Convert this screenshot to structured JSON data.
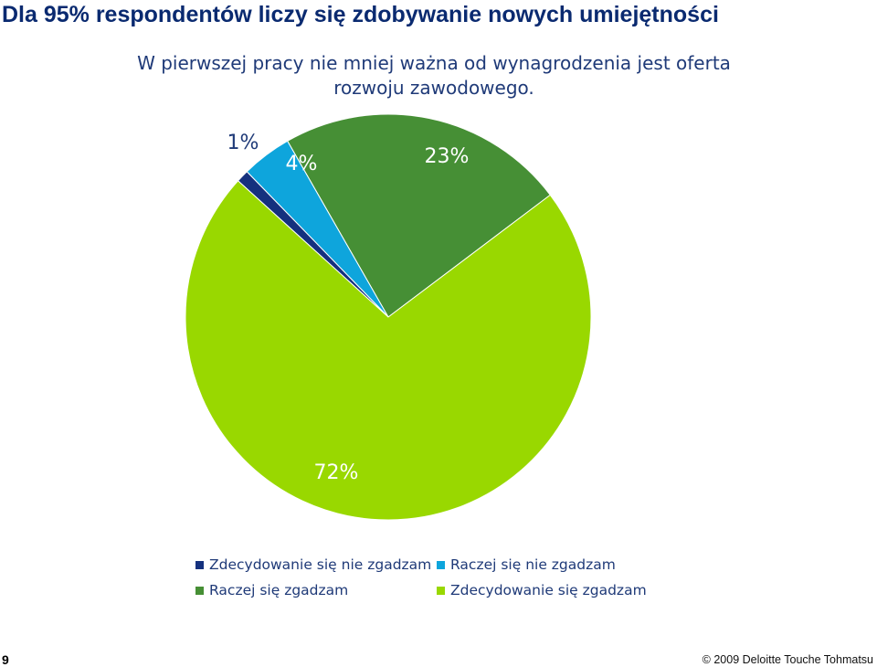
{
  "slide": {
    "title": "Dla 95% respondentów liczy się zdobywanie nowych umiejętności",
    "page_number": "9",
    "copyright": "© 2009 Deloitte Touche Tohmatsu"
  },
  "chart_data": {
    "type": "pie",
    "title": "W pierwszej pracy nie mniej ważna od wynagrodzenia jest oferta rozwoju zawodowego.",
    "slices": [
      {
        "label": "Zdecydowanie się nie zgadzam",
        "value": 1,
        "display": "1%",
        "color": "#15317e"
      },
      {
        "label": "Raczej się nie zgadzam",
        "value": 4,
        "display": "4%",
        "color": "#0ea5dc"
      },
      {
        "label": "Raczej się zgadzam",
        "value": 23,
        "display": "23%",
        "color": "#468f35"
      },
      {
        "label": "Zdecydowanie się zgadzam",
        "value": 72,
        "display": "72%",
        "color": "#99d800"
      }
    ],
    "legend_placement": "bottom",
    "start_angle_deg": -37
  }
}
